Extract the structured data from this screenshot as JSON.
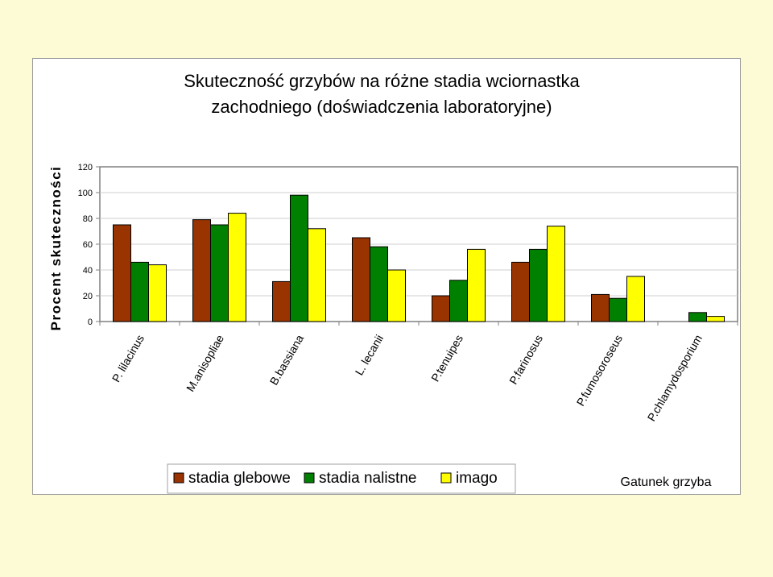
{
  "chart_data": {
    "type": "bar",
    "title_lines": [
      "Skuteczność grzybów na różne stadia wciornastka",
      "zachodniego (doświadczenia laboratoryjne)"
    ],
    "ylabel": "Procent skuteczności",
    "xlabel": "Gatunek grzyba",
    "ylim": [
      0,
      120
    ],
    "yticks": [
      "0",
      "20",
      "40",
      "60",
      "80",
      "100",
      "120"
    ],
    "grid": true,
    "legend_position": "bottom",
    "categories": [
      "P. lilacinus",
      "M.anisopliae",
      "B.bassiana",
      "L. lecanii",
      "P.tenuipes",
      "P.farinosus",
      "P.fumosoroseus",
      "P.chlamydosporium"
    ],
    "series": [
      {
        "name": "stadia glebowe",
        "color": "#993300",
        "values": [
          75,
          79,
          31,
          65,
          20,
          46,
          21,
          0
        ]
      },
      {
        "name": "stadia nalistne",
        "color": "#008000",
        "values": [
          46,
          75,
          98,
          58,
          32,
          56,
          18,
          7
        ]
      },
      {
        "name": "imago",
        "color": "#ffff00",
        "values": [
          44,
          84,
          72,
          40,
          56,
          74,
          35,
          4
        ]
      }
    ]
  }
}
